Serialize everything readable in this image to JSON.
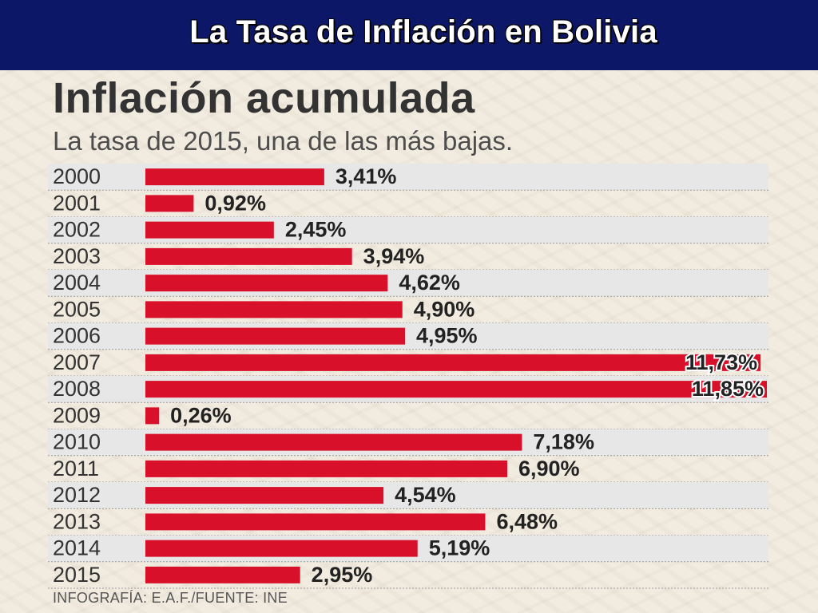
{
  "slide": {
    "title": "La Tasa de Inflación en Bolivia"
  },
  "infographic": {
    "title": "Inflación acumulada",
    "subtitle": "La tasa de 2015, una de las más bajas.",
    "source": "INFOGRAFÍA: E.A.F./FUENTE: INE"
  },
  "colors": {
    "header_bg": "#0c1768",
    "bar": "#d9102a",
    "row_alt": "#e7e7e7"
  },
  "chart_data": {
    "type": "bar",
    "orientation": "horizontal",
    "categories": [
      "2000",
      "2001",
      "2002",
      "2003",
      "2004",
      "2005",
      "2006",
      "2007",
      "2008",
      "2009",
      "2010",
      "2011",
      "2012",
      "2013",
      "2014",
      "2015"
    ],
    "values": [
      3.41,
      0.92,
      2.45,
      3.94,
      4.62,
      4.9,
      4.95,
      11.73,
      11.85,
      0.26,
      7.18,
      6.9,
      4.54,
      6.48,
      5.19,
      2.95
    ],
    "value_labels": [
      "3,41%",
      "0,92%",
      "2,45%",
      "3,94%",
      "4,62%",
      "4,90%",
      "4,95%",
      "11,73%",
      "11,85%",
      "0,26%",
      "7,18%",
      "6,90%",
      "4,54%",
      "6,48%",
      "5,19%",
      "2,95%"
    ],
    "title": "Inflación acumulada",
    "subtitle": "La tasa de 2015, una de las más bajas.",
    "xlim": [
      0,
      11.85
    ],
    "grid": false,
    "legend": "none"
  }
}
